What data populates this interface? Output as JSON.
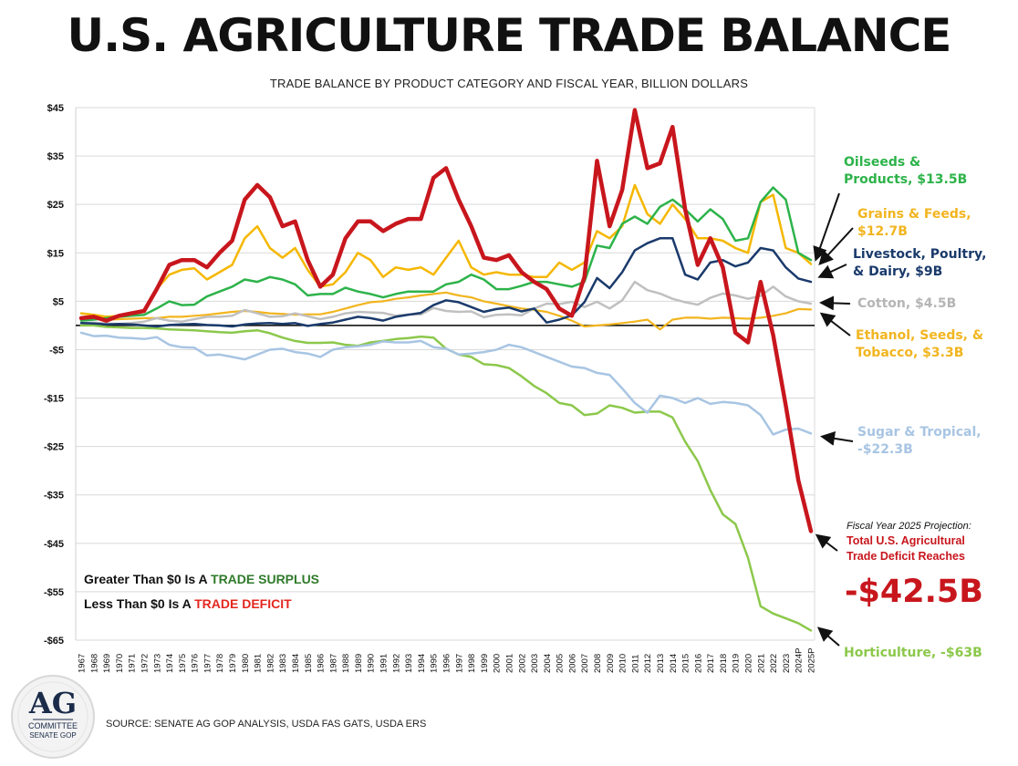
{
  "title": "U.S. AGRICULTURE TRADE BALANCE",
  "subtitle": "TRADE BALANCE BY PRODUCT CATEGORY AND FISCAL YEAR, BILLION DOLLARS",
  "source": "SOURCE: SENATE AG GOP ANALYSIS, USDA FAS GATS, USDA ERS",
  "logo": {
    "big": "AG",
    "line1": "COMMITTEE",
    "line2": "SENATE GOP"
  },
  "legend_note": {
    "surplus_prefix": "Greater Than $0 Is A ",
    "surplus_word": "TRADE SURPLUS",
    "deficit_prefix": "Less Than $0 Is A ",
    "deficit_word": "TRADE DEFICIT",
    "surplus_color": "#2f7a2a",
    "deficit_color": "#e3281f"
  },
  "projection": {
    "note": "Fiscal Year 2025 Projection:",
    "line1": "Total U.S. Agricultural",
    "line2": "Trade Deficit Reaches",
    "value": "-$42.5B"
  },
  "chart_data": {
    "type": "line",
    "title": "U.S. AGRICULTURE TRADE BALANCE",
    "ylabel": "Billion Dollars",
    "xlabel": "Fiscal Year",
    "ylim": [
      -65,
      45
    ],
    "yticks": [
      45,
      35,
      25,
      15,
      5,
      -5,
      -15,
      -25,
      -35,
      -45,
      -55,
      -65
    ],
    "ytick_labels": [
      "$45",
      "$35",
      "$25",
      "$15",
      "$5",
      "-$5",
      "-$15",
      "-$25",
      "-$35",
      "-$45",
      "-$55",
      "-$65"
    ],
    "categories": [
      "1967",
      "1968",
      "1969",
      "1970",
      "1971",
      "1972",
      "1973",
      "1974",
      "1975",
      "1976",
      "1977",
      "1978",
      "1979",
      "1980",
      "1981",
      "1982",
      "1983",
      "1984",
      "1985",
      "1986",
      "1987",
      "1988",
      "1989",
      "1990",
      "1991",
      "1992",
      "1993",
      "1994",
      "1995",
      "1996",
      "1997",
      "1998",
      "1999",
      "2000",
      "2001",
      "2002",
      "2003",
      "2004",
      "2005",
      "2006",
      "2007",
      "2008",
      "2009",
      "2010",
      "2011",
      "2012",
      "2013",
      "2014",
      "2015",
      "2016",
      "2017",
      "2018",
      "2019",
      "2020",
      "2021",
      "2022",
      "2023",
      "2024P",
      "2025P"
    ],
    "series": [
      {
        "name": "Horticulture",
        "label": "Horticulture, -$63B",
        "color": "#8cc84b",
        "width": 2.5,
        "values": [
          0,
          0,
          -0.3,
          -0.4,
          -0.5,
          -0.5,
          -0.6,
          -0.8,
          -0.9,
          -1,
          -1.2,
          -1.4,
          -1.5,
          -1.2,
          -1,
          -1.6,
          -2.5,
          -3.2,
          -3.6,
          -3.6,
          -3.5,
          -4,
          -4.2,
          -3.5,
          -3.2,
          -2.8,
          -2.6,
          -2.3,
          -2.5,
          -4.8,
          -6,
          -6.5,
          -8,
          -8.2,
          -8.8,
          -10.5,
          -12.5,
          -14,
          -16,
          -16.5,
          -18.5,
          -18.2,
          -16.5,
          -17,
          -18,
          -17.8,
          -17.8,
          -19,
          -24,
          -28,
          -34,
          -39,
          -41,
          -48,
          -58,
          -59.5,
          -60.5,
          -61.5,
          -63
        ]
      },
      {
        "name": "Sugar & Tropical",
        "label": "Sugar & Tropical, -$22.3B",
        "color": "#a8c5e3",
        "width": 2.5,
        "values": [
          -1.5,
          -2.2,
          -2.1,
          -2.5,
          -2.6,
          -2.8,
          -2.4,
          -4,
          -4.5,
          -4.6,
          -6.2,
          -6,
          -6.5,
          -7,
          -6,
          -5,
          -4.8,
          -5.5,
          -5.8,
          -6.5,
          -5,
          -4.5,
          -4.3,
          -4,
          -3.3,
          -3.5,
          -3.5,
          -3.2,
          -4.5,
          -4.8,
          -6,
          -5.8,
          -5.5,
          -5,
          -4,
          -4.5,
          -5.5,
          -6.5,
          -7.5,
          -8.5,
          -8.8,
          -9.8,
          -10.2,
          -13,
          -16,
          -18,
          -14.5,
          -15,
          -16,
          -15,
          -16.2,
          -15.8,
          -16,
          -16.5,
          -18.5,
          -22.5,
          -21.5,
          -21.3,
          -22.3
        ]
      },
      {
        "name": "Ethanol, Seeds, & Tobacco",
        "label": "Ethanol, Seeds, & Tobacco, $3.3B",
        "color": "#f2b51f",
        "width": 2.2,
        "values": [
          1.5,
          1.5,
          1.2,
          1.3,
          1.4,
          1.5,
          1.5,
          1.8,
          1.8,
          2,
          2.2,
          2.5,
          2.8,
          3,
          2.8,
          2.5,
          2.4,
          2.2,
          2.3,
          2.3,
          2.8,
          3.5,
          4.2,
          4.8,
          5,
          5.5,
          5.8,
          6.2,
          6.5,
          6.8,
          6.2,
          5.8,
          5,
          4.5,
          4,
          3.5,
          3.2,
          2.8,
          2,
          1,
          -0.2,
          0,
          0.2,
          0.5,
          0.8,
          1.2,
          -0.8,
          1.2,
          1.6,
          1.6,
          1.4,
          1.6,
          1.5,
          1.4,
          1.6,
          2,
          2.5,
          3.4,
          3.3
        ]
      },
      {
        "name": "Cotton",
        "label": "Cotton, $4.5B",
        "color": "#c0c0c0",
        "width": 2.5,
        "values": [
          0.5,
          0.6,
          0.4,
          0.3,
          0.5,
          0.8,
          1.5,
          1,
          0.8,
          1.3,
          1.8,
          1.8,
          2,
          3.2,
          2.5,
          1.8,
          1.9,
          2.5,
          1.9,
          1.3,
          1.8,
          2.5,
          2.8,
          2.7,
          2.6,
          2,
          2.3,
          2.3,
          3.6,
          3,
          2.8,
          2.9,
          1.7,
          2.2,
          2.3,
          2.1,
          3.5,
          4.5,
          4.4,
          4.9,
          3.8,
          4.9,
          3.5,
          5.2,
          9,
          7.3,
          6.6,
          5.5,
          4.8,
          4.3,
          5.7,
          6.6,
          6.2,
          5.5,
          6.1,
          8,
          6,
          5,
          4.5
        ]
      },
      {
        "name": "Livestock, Poultry, & Dairy",
        "label": "Livestock, Poultry, & Dairy, $9B",
        "color": "#1a3a6b",
        "width": 2.5,
        "values": [
          0.5,
          0.4,
          0.2,
          0.3,
          0.2,
          0,
          -0.2,
          0.1,
          0.2,
          0.3,
          0.1,
          0,
          -0.2,
          0.2,
          0.4,
          0.5,
          0.3,
          0.5,
          -0.1,
          0.3,
          0.6,
          1.2,
          1.8,
          1.5,
          1,
          1.8,
          2.2,
          2.6,
          4.2,
          5.2,
          4.8,
          3.8,
          2.8,
          3.4,
          3.7,
          2.9,
          3.5,
          0.6,
          1.2,
          2.1,
          4.8,
          9.8,
          7.7,
          11,
          15.5,
          17,
          18,
          18,
          10.5,
          9.5,
          13,
          13.5,
          12.2,
          13,
          16,
          15.5,
          12,
          9.7,
          9
        ]
      },
      {
        "name": "Grains & Feeds",
        "label": "Grains & Feeds, $12.7B",
        "color": "#f5b700",
        "width": 2.5,
        "values": [
          2.5,
          2.2,
          1.8,
          2,
          2.5,
          3,
          7.5,
          10.5,
          11.5,
          11.8,
          9.5,
          11,
          12.5,
          18,
          20.5,
          16,
          14,
          16,
          11.5,
          8,
          8.5,
          11,
          15,
          13.5,
          10,
          12,
          11.5,
          12,
          10.5,
          14,
          17.5,
          12,
          10.5,
          11,
          10.5,
          10.5,
          10,
          10,
          13,
          11.5,
          13,
          19.5,
          18,
          20.5,
          29,
          23,
          21,
          25,
          22,
          18,
          18,
          17.5,
          16,
          15,
          25.5,
          27,
          16,
          15,
          12.7
        ]
      },
      {
        "name": "Oilseeds & Products",
        "label": "Oilseeds & Products, $13.5B",
        "color": "#2db34a",
        "width": 2.5,
        "values": [
          1,
          1.2,
          1.5,
          1.8,
          2,
          2.2,
          3.5,
          5,
          4.2,
          4.3,
          6,
          7,
          8,
          9.5,
          9,
          10,
          9.5,
          8.5,
          6.2,
          6.5,
          6.5,
          7.8,
          7,
          6.5,
          5.8,
          6.5,
          7,
          7,
          7,
          8.5,
          9,
          10.5,
          9.5,
          7.5,
          7.5,
          8.2,
          9,
          9,
          8.5,
          8,
          9,
          16.5,
          16,
          21,
          22.5,
          21,
          24.5,
          26,
          24,
          21.5,
          24,
          22,
          17.5,
          18,
          25.5,
          28.5,
          26,
          15,
          13.5
        ]
      },
      {
        "name": "Total U.S. Agricultural",
        "label": "Total U.S. Agricultural Trade Balance",
        "color": "#c8161d",
        "width": 4.5,
        "values": [
          1.5,
          1.8,
          1,
          2,
          2.5,
          3,
          7.5,
          12.5,
          13.5,
          13.5,
          12,
          15,
          17.5,
          26,
          29,
          26.5,
          20.5,
          21.5,
          13.5,
          8,
          10.5,
          18,
          21.5,
          21.5,
          19.5,
          21,
          22,
          22,
          30.5,
          32.5,
          26,
          20.5,
          14,
          13.5,
          14.5,
          11,
          9,
          7.5,
          3.5,
          2,
          10,
          34,
          20.5,
          28,
          44.5,
          32.5,
          33.5,
          41,
          24,
          12.5,
          18,
          12,
          -1.5,
          -3.5,
          9,
          -2,
          -16.5,
          -32,
          -42.5
        ]
      }
    ],
    "annotations": [
      {
        "series": "Oilseeds & Products",
        "text": "Oilseeds & Products, $13.5B",
        "lines": [
          "Oilseeds &",
          "Products, $13.5B"
        ],
        "color": "#2db34a"
      },
      {
        "series": "Grains & Feeds",
        "text": "Grains & Feeds, $12.7B",
        "lines": [
          "Grains & Feeds,",
          "$12.7B"
        ],
        "color": "#f2b51f"
      },
      {
        "series": "Livestock, Poultry, & Dairy",
        "text": "Livestock, Poultry, & Dairy, $9B",
        "lines": [
          "Livestock, Poultry,",
          "& Dairy, $9B"
        ],
        "color": "#1a3a6b"
      },
      {
        "series": "Cotton",
        "text": "Cotton, $4.5B",
        "lines": [
          "Cotton, $4.5B"
        ],
        "color": "#b5b5b5"
      },
      {
        "series": "Ethanol, Seeds, & Tobacco",
        "text": "Ethanol, Seeds, & Tobacco, $3.3B",
        "lines": [
          "Ethanol, Seeds, &",
          "Tobacco, $3.3B"
        ],
        "color": "#f2b51f"
      },
      {
        "series": "Sugar & Tropical",
        "text": "Sugar & Tropical, -$22.3B",
        "lines": [
          "Sugar & Tropical,",
          "-$22.3B"
        ],
        "color": "#a8c5e3"
      },
      {
        "series": "Horticulture",
        "text": "Horticulture, -$63B",
        "lines": [
          "Horticulture, -$63B"
        ],
        "color": "#8cc84b"
      }
    ],
    "grid": true,
    "legend": "inline-right"
  }
}
